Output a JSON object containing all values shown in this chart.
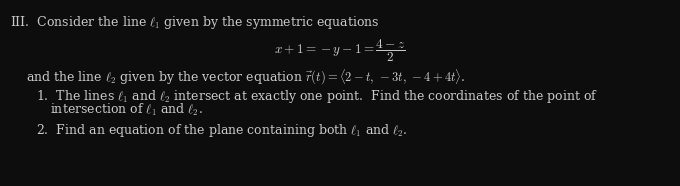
{
  "bg_color": "#0d0d0d",
  "text_color": "#c8c8c8",
  "figsize": [
    6.8,
    1.86
  ],
  "dpi": 100,
  "line0": "III.  Consider the line $\\ell_1$ given by the symmetric equations",
  "equation": "$x + 1 = -y - 1 = \\dfrac{4 - z}{2}$",
  "line2": "and the line $\\ell_2$ given by the vector equation $\\vec{r}(t) = \\langle 2-t,\\,-3t,\\,-4+4t\\rangle$.",
  "item1a": "1.  The lines $\\ell_1$ and $\\ell_2$ intersect at exactly one point.  Find the coordinates of the point of",
  "item1b": "intersection of $\\ell_1$ and $\\ell_2$.",
  "item2": "2.  Find an equation of the plane containing both $\\ell_1$ and $\\ell_2$.",
  "fs": 9.0,
  "fs_eq": 9.5
}
